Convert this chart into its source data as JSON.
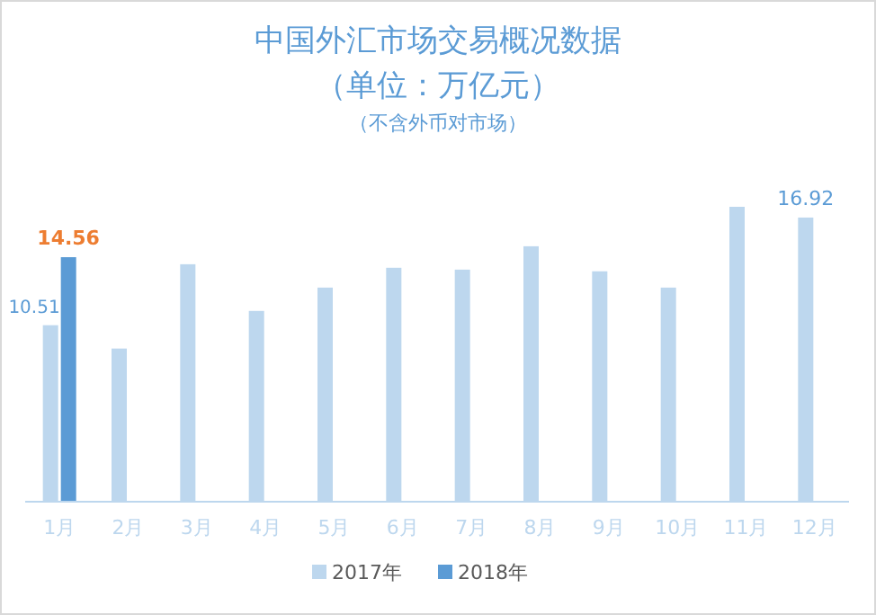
{
  "chart_data": {
    "type": "bar",
    "title": "中国外汇市场交易概况数据",
    "subtitle": "（单位：万亿元）",
    "annotations": [
      "（不含外币对市场）"
    ],
    "categories": [
      "1月",
      "2月",
      "3月",
      "4月",
      "5月",
      "6月",
      "7月",
      "8月",
      "9月",
      "10月",
      "11月",
      "12月"
    ],
    "series": [
      {
        "name": "2017年",
        "color": "#bdd7ee",
        "values": [
          10.51,
          9.12,
          14.14,
          11.36,
          12.75,
          13.93,
          13.82,
          15.21,
          13.72,
          12.75,
          17.56,
          16.92
        ],
        "value_labels": [
          "10.51",
          null,
          null,
          null,
          null,
          null,
          null,
          null,
          null,
          null,
          null,
          "16.92"
        ]
      },
      {
        "name": "2018年",
        "color": "#5b9bd5",
        "values": [
          14.56,
          null,
          null,
          null,
          null,
          null,
          null,
          null,
          null,
          null,
          null,
          null
        ],
        "value_labels": [
          "14.56",
          null,
          null,
          null,
          null,
          null,
          null,
          null,
          null,
          null,
          null,
          null
        ]
      }
    ],
    "legend": "bottom"
  }
}
